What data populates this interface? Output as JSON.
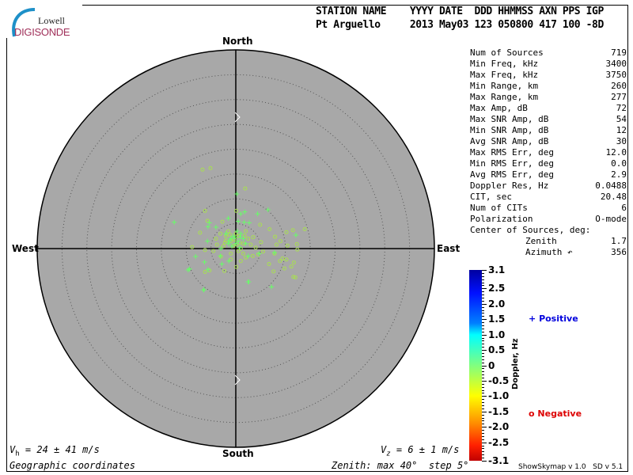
{
  "logo": {
    "line1": "Lowell",
    "line2": "DIGISONDE"
  },
  "header": {
    "labels": "STATION NAME    YYYY DATE  DDD HHMMSS AXN PPS IGP",
    "values": "Pt Arguello     2013 May03 123 050800 417 100 -8D"
  },
  "directions": {
    "north": "North",
    "south": "South",
    "east": "East",
    "west": "West"
  },
  "stats": [
    {
      "label": "Num of Sources",
      "value": "719"
    },
    {
      "label": "Min Freq, kHz",
      "value": "3400"
    },
    {
      "label": "Max Freq, kHz",
      "value": "3750"
    },
    {
      "label": "Min Range, km",
      "value": "260"
    },
    {
      "label": "Max Range, km",
      "value": "277"
    },
    {
      "label": "Max Amp, dB",
      "value": "72"
    },
    {
      "label": "Max SNR Amp, dB",
      "value": "54"
    },
    {
      "label": "Min SNR Amp, dB",
      "value": "12"
    },
    {
      "label": "Avg SNR Amp, dB",
      "value": "30"
    },
    {
      "label": "Max RMS Err, deg",
      "value": "12.0"
    },
    {
      "label": "Min RMS Err, deg",
      "value": "0.0"
    },
    {
      "label": "Avg RMS Err, deg",
      "value": "2.9"
    },
    {
      "label": "Doppler Res, Hz",
      "value": "0.0488"
    },
    {
      "label": "CIT, sec",
      "value": "20.48"
    },
    {
      "label": "Num of CITs",
      "value": "6"
    },
    {
      "label": "Polarization",
      "value": "O-mode"
    }
  ],
  "center": {
    "title": "Center of Sources, deg:",
    "zenith_label": "Zenith",
    "zenith": "1.7",
    "azimuth_label": "Azimuth",
    "azimuth": "356"
  },
  "colorbar": {
    "label": "Doppler, Hz",
    "ticks": [
      "3.1",
      "2.5",
      "2.0",
      "1.5",
      "1.0",
      "0.5",
      "0",
      "-0.5",
      "-1.0",
      "-1.5",
      "-2.0",
      "-2.5",
      "-3.1"
    ]
  },
  "legend": {
    "positive_symbol": "+",
    "positive": "Positive",
    "negative_symbol": "o",
    "negative": "Negative",
    "positive_color": "#0000dd",
    "negative_color": "#dd0000"
  },
  "footer": {
    "vh": "24 ± 41 m/s",
    "vh_sym": "V",
    "vh_sub": "h",
    "vz": "6 ± 1 m/s",
    "vz_sym": "V",
    "vz_sub": "z",
    "coords": "Geographic coordinates",
    "zenith": "Zenith: max 40°  step 5°",
    "version": "ShowSkymap v 1.0   SD v 5.1"
  },
  "chart_data": {
    "type": "scatter",
    "projection": "polar skymap, zenith angle vs azimuth",
    "zenith_max_deg": 40,
    "ring_step_deg": 5,
    "x_axis": "East (deg)",
    "y_axis": "North (deg)",
    "background": "#a8a8a8",
    "point_colors": {
      "positive": "#66ff66",
      "negative": "#a8e050"
    },
    "negative": [
      [
        -6.7,
        15.9
      ],
      [
        -5.1,
        16.2
      ],
      [
        1.9,
        12.1
      ],
      [
        -6.2,
        7.6
      ],
      [
        0.1,
        7.6
      ],
      [
        -5.7,
        5.6
      ],
      [
        -2.7,
        5.4
      ],
      [
        -7.2,
        3.2
      ],
      [
        -8.8,
        0.3
      ],
      [
        -6.2,
        -0.3
      ],
      [
        4.9,
        4.8
      ],
      [
        6.8,
        3.9
      ],
      [
        10.2,
        3.3
      ],
      [
        11.5,
        3.7
      ],
      [
        13.9,
        3.9
      ],
      [
        7.9,
        2.4
      ],
      [
        9.0,
        1.5
      ],
      [
        8.2,
        0.8
      ],
      [
        10.4,
        0.6
      ],
      [
        12.3,
        0.9
      ],
      [
        12.4,
        -0.2
      ],
      [
        7.8,
        -1.0
      ],
      [
        9.4,
        -2.0
      ],
      [
        8.9,
        -2.5
      ],
      [
        6.7,
        -3.1
      ],
      [
        10.2,
        -2.2
      ],
      [
        11.7,
        -2.8
      ],
      [
        11.2,
        -3.6
      ],
      [
        9.8,
        -4.0
      ],
      [
        7.6,
        -4.6
      ],
      [
        12.0,
        -5.8
      ],
      [
        0.1,
        -3.7
      ],
      [
        -5.3,
        -4.4
      ],
      [
        -2.3,
        -4.5
      ],
      [
        -6.2,
        -4.7
      ],
      [
        3.4,
        -1.5
      ],
      [
        4.5,
        -1.2
      ],
      [
        -4.0,
        2.0
      ],
      [
        -3.1,
        3.0
      ],
      [
        -2.0,
        1.6
      ],
      [
        3.5,
        2.3
      ],
      [
        5.1,
        1.3
      ],
      [
        -4.5,
        -0.5
      ],
      [
        -3.8,
        0.8
      ],
      [
        2.0,
        -1.8
      ],
      [
        -1.0,
        -2.2
      ],
      [
        1.0,
        -2.5
      ],
      [
        4.0,
        0.2
      ],
      [
        5.5,
        -0.6
      ],
      [
        -3.0,
        -1.6
      ],
      [
        11.6,
        -5.7
      ],
      [
        -1.0,
        1.5
      ],
      [
        0.5,
        2.5
      ],
      [
        1.5,
        1.0
      ],
      [
        -2.0,
        2.5
      ],
      [
        -0.5,
        0.5
      ],
      [
        1.0,
        0.0
      ],
      [
        2.5,
        2.0
      ],
      [
        -1.5,
        3.5
      ],
      [
        0.0,
        3.0
      ],
      [
        2.0,
        3.5
      ],
      [
        -2.5,
        0.5
      ],
      [
        0.5,
        -0.5
      ],
      [
        3.0,
        0.8
      ],
      [
        -1.0,
        -1.0
      ],
      [
        1.5,
        -1.0
      ],
      [
        -0.3,
        1.8
      ],
      [
        0.8,
        1.2
      ],
      [
        -1.2,
        2.8
      ],
      [
        1.8,
        2.6
      ],
      [
        -2.2,
        1.2
      ],
      [
        0.2,
        0.8
      ]
    ],
    "positive": [
      [
        0.2,
        11.0
      ],
      [
        -12.4,
        5.3
      ],
      [
        1.0,
        7.0
      ],
      [
        1.8,
        7.4
      ],
      [
        4.4,
        7.0
      ],
      [
        6.5,
        7.8
      ],
      [
        -1.5,
        6.1
      ],
      [
        -5.3,
        5.2
      ],
      [
        -5.6,
        4.4
      ],
      [
        -4.0,
        4.3
      ],
      [
        12.1,
        2.7
      ],
      [
        -5.7,
        1.5
      ],
      [
        -8.1,
        -1.6
      ],
      [
        -6.3,
        -2.7
      ],
      [
        -9.3,
        -4.1
      ],
      [
        -5.6,
        -4.2
      ],
      [
        -2.8,
        -3.1
      ],
      [
        -1.4,
        -2.5
      ],
      [
        2.5,
        -1.5
      ],
      [
        2.6,
        -6.7
      ],
      [
        7.2,
        -7.7
      ],
      [
        -6.5,
        -8.3
      ],
      [
        7.8,
        -0.8
      ],
      [
        4.7,
        -1.0
      ],
      [
        -3.1,
        -1.5
      ],
      [
        1.7,
        5.3
      ],
      [
        2.7,
        5.2
      ],
      [
        -3.0,
        0.0
      ],
      [
        0.5,
        5.5
      ],
      [
        -0.5,
        2.5
      ],
      [
        0.5,
        1.5
      ],
      [
        -1.0,
        2.0
      ],
      [
        1.0,
        3.0
      ],
      [
        0.0,
        1.0
      ],
      [
        -1.5,
        1.0
      ],
      [
        1.5,
        2.0
      ],
      [
        0.3,
        3.5
      ],
      [
        -0.8,
        0.5
      ],
      [
        0.8,
        0.2
      ],
      [
        -2.0,
        3.0
      ],
      [
        2.0,
        1.0
      ],
      [
        -9.6,
        -4.3
      ],
      [
        -6.4,
        -8.3
      ],
      [
        2.5,
        -6.7
      ],
      [
        -0.2,
        2.2
      ],
      [
        0.9,
        2.4
      ],
      [
        -1.3,
        1.6
      ]
    ]
  }
}
